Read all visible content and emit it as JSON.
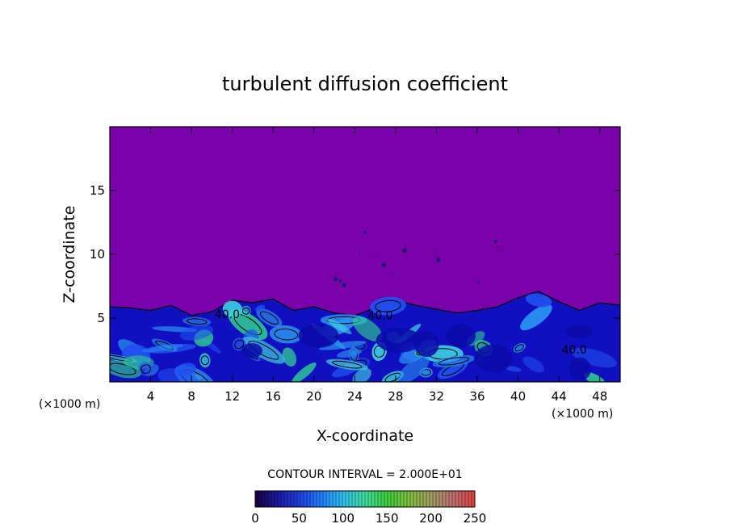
{
  "chart_data": {
    "type": "heatmap",
    "title": "turbulent diffusion coefficient",
    "xlabel": "X-coordinate",
    "ylabel": "Z-coordinate",
    "x_unit": "(×1000 m)",
    "xlim": [
      0,
      50
    ],
    "ylim": [
      0,
      20
    ],
    "x_ticks": [
      4,
      8,
      12,
      16,
      20,
      24,
      28,
      32,
      36,
      40,
      44,
      48
    ],
    "y_ticks": [
      5,
      10,
      15
    ],
    "contour_interval_text": "CONTOUR INTERVAL = 2.000E+01",
    "contour_labels": [
      {
        "text": "40.0",
        "x": 11.5,
        "z": 5.0
      },
      {
        "text": "40.0",
        "x": 26.5,
        "z": 4.9
      },
      {
        "text": "40.0",
        "x": 45.5,
        "z": 2.2
      }
    ],
    "colorbar": {
      "min": 0,
      "max": 250,
      "ticks": [
        0,
        50,
        100,
        150,
        200,
        250
      ],
      "colors": [
        "#1a0040",
        "#1a1aa0",
        "#2040e0",
        "#2080ff",
        "#30c0f0",
        "#40e0a0",
        "#40d040",
        "#80c040",
        "#a0a060",
        "#c07070",
        "#e04040"
      ]
    },
    "background_color": "#7a00aa",
    "boundary_layer_top_z": [
      5.9,
      5.8,
      5.6,
      6.0,
      5.2,
      5.5,
      6.4,
      6.2,
      6.5,
      5.6,
      5.9,
      5.4,
      5.2,
      5.8,
      6.4,
      6.0,
      5.7,
      5.4,
      5.6,
      5.9,
      6.6,
      7.1,
      6.3,
      5.6,
      6.2,
      6.0
    ],
    "colors": {
      "background_purple": "#7a00aa",
      "deep_blue": "#1010c0",
      "mid_blue": "#2050f0",
      "light_blue": "#2a90f0",
      "cyan": "#40d0e0",
      "green": "#30d090"
    }
  }
}
